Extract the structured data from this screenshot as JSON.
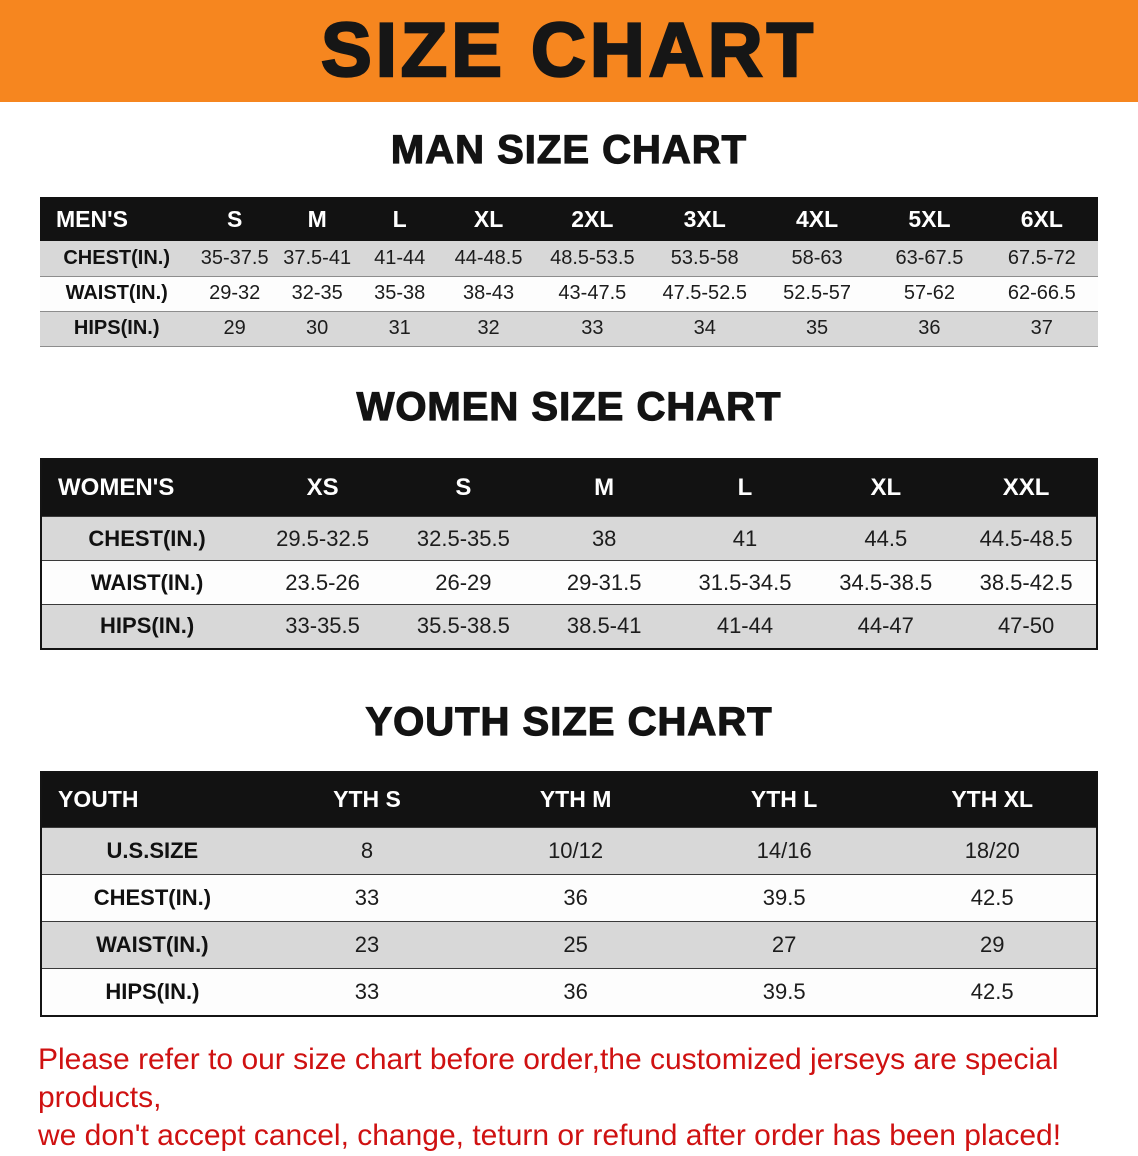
{
  "banner": {
    "title": "SIZE CHART"
  },
  "sections": [
    {
      "name": "mens",
      "heading": "MAN SIZE CHART",
      "table": {
        "name": "mens",
        "header": [
          "MEN'S",
          "S",
          "M",
          "L",
          "XL",
          "2XL",
          "3XL",
          "4XL",
          "5XL",
          "6XL"
        ],
        "rows": [
          {
            "label": "CHEST(IN.)",
            "values": [
              "35-37.5",
              "37.5-41",
              "41-44",
              "44-48.5",
              "48.5-53.5",
              "53.5-58",
              "58-63",
              "63-67.5",
              "67.5-72"
            ]
          },
          {
            "label": "WAIST(IN.)",
            "values": [
              "29-32",
              "32-35",
              "35-38",
              "38-43",
              "43-47.5",
              "47.5-52.5",
              "52.5-57",
              "57-62",
              "62-66.5"
            ]
          },
          {
            "label": "HIPS(IN.)",
            "values": [
              "29",
              "30",
              "31",
              "32",
              "33",
              "34",
              "35",
              "36",
              "37"
            ]
          }
        ]
      }
    },
    {
      "name": "womens",
      "heading": "WOMEN SIZE CHART",
      "table": {
        "name": "womens",
        "header": [
          "WOMEN'S",
          "XS",
          "S",
          "M",
          "L",
          "XL",
          "XXL"
        ],
        "rows": [
          {
            "label": "CHEST(IN.)",
            "values": [
              "29.5-32.5",
              "32.5-35.5",
              "38",
              "41",
              "44.5",
              "44.5-48.5"
            ]
          },
          {
            "label": "WAIST(IN.)",
            "values": [
              "23.5-26",
              "26-29",
              "29-31.5",
              "31.5-34.5",
              "34.5-38.5",
              "38.5-42.5"
            ]
          },
          {
            "label": "HIPS(IN.)",
            "values": [
              "33-35.5",
              "35.5-38.5",
              "38.5-41",
              "41-44",
              "44-47",
              "47-50"
            ]
          }
        ]
      }
    },
    {
      "name": "youth",
      "heading": "YOUTH SIZE CHART",
      "table": {
        "name": "youth",
        "header": [
          "YOUTH",
          "YTH S",
          "YTH M",
          "YTH L",
          "YTH XL"
        ],
        "rows": [
          {
            "label": "U.S.SIZE",
            "values": [
              "8",
              "10/12",
              "14/16",
              "18/20"
            ]
          },
          {
            "label": "CHEST(IN.)",
            "values": [
              "33",
              "36",
              "39.5",
              "42.5"
            ]
          },
          {
            "label": "WAIST(IN.)",
            "values": [
              "23",
              "25",
              "27",
              "29"
            ]
          },
          {
            "label": "HIPS(IN.)",
            "values": [
              "33",
              "36",
              "39.5",
              "42.5"
            ]
          }
        ]
      }
    }
  ],
  "disclaimer": {
    "line1": "Please refer to our size chart before order,the customized jerseys are special products,",
    "line2": "we don't accept cancel, change, teturn or refund after order has been placed!"
  },
  "colors": {
    "banner-orange": "#f6861f",
    "header-black": "#121212",
    "stripe-gray": "#d8d8d8",
    "disclaimer-red": "#cf1111"
  }
}
